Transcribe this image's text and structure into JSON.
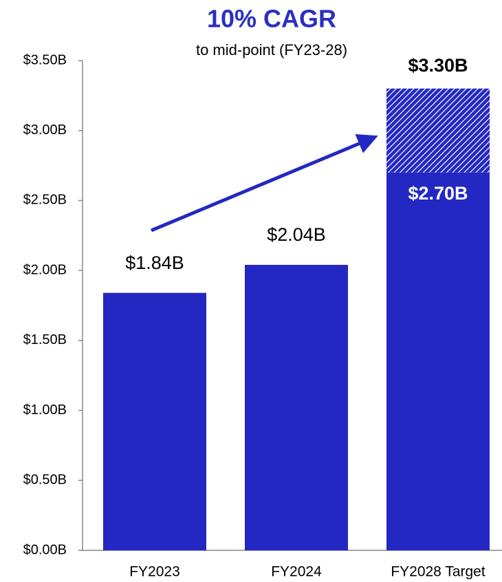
{
  "chart_data": {
    "type": "bar",
    "title": "10% CAGR",
    "subtitle": "to mid-point (FY23-28)",
    "categories": [
      "FY2023",
      "FY2024",
      "FY2028 Target"
    ],
    "stacked": true,
    "series": [
      {
        "color": "#2328c2",
        "values": [
          1.84,
          2.04,
          2.7
        ],
        "value_labels": [
          "$1.84B",
          "$2.04B",
          "$2.70B"
        ]
      },
      {
        "color": "#2328c2",
        "pattern": "hatch",
        "values": [
          null,
          null,
          0.6
        ]
      }
    ],
    "annotations": [
      {
        "text": "$3.30B",
        "category": 2
      }
    ],
    "ylim": [
      0,
      3.5
    ],
    "yticks": [
      {
        "value": 0,
        "label": "$0.00B"
      },
      {
        "value": 0.5,
        "label": "$0.50B"
      },
      {
        "value": 1,
        "label": "$1.00B"
      },
      {
        "value": 1.5,
        "label": "$1.50B"
      },
      {
        "value": 2,
        "label": "$2.00B"
      },
      {
        "value": 2.5,
        "label": "$2.50B"
      },
      {
        "value": 3,
        "label": "$3.00B"
      },
      {
        "value": 3.5,
        "label": "$3.50B"
      }
    ],
    "grid": false
  }
}
